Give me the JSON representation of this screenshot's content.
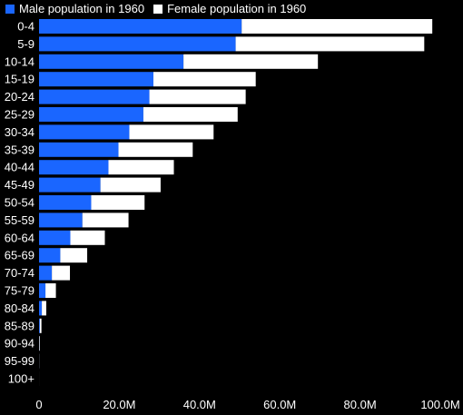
{
  "colors": {
    "male": "#1a66ff",
    "female": "#ffffff",
    "background": "#000000",
    "text": "#ffffff"
  },
  "chart_data": {
    "type": "bar",
    "orientation": "horizontal",
    "stacked": true,
    "title": "",
    "xlabel": "",
    "ylabel": "",
    "legend_position": "top-left",
    "grid": false,
    "xlim": [
      0,
      100000000
    ],
    "x_ticks": [
      {
        "value": 0,
        "label": "0"
      },
      {
        "value": 20000000,
        "label": "20.0M"
      },
      {
        "value": 40000000,
        "label": "40.0M"
      },
      {
        "value": 60000000,
        "label": "60.0M"
      },
      {
        "value": 80000000,
        "label": "80.0M"
      },
      {
        "value": 100000000,
        "label": "100.0M"
      }
    ],
    "categories": [
      "0-4",
      "5-9",
      "10-14",
      "15-19",
      "20-24",
      "25-29",
      "30-34",
      "35-39",
      "40-44",
      "45-49",
      "50-54",
      "55-59",
      "60-64",
      "65-69",
      "70-74",
      "75-79",
      "80-84",
      "85-89",
      "90-94",
      "95-99",
      "100+"
    ],
    "series": [
      {
        "name": "Male population in 1960",
        "values": [
          50500000,
          49000000,
          36000000,
          28500000,
          27500000,
          26000000,
          22500000,
          19800000,
          17300000,
          15300000,
          13000000,
          10800000,
          7800000,
          5300000,
          3200000,
          1600000,
          700000,
          200000,
          50000,
          10000,
          0
        ]
      },
      {
        "name": "Female population in 1960",
        "values": [
          47500000,
          47000000,
          33500000,
          25500000,
          24000000,
          23500000,
          21000000,
          18500000,
          16300000,
          15000000,
          13300000,
          11500000,
          8600000,
          6700000,
          4500000,
          2600000,
          1100000,
          400000,
          150000,
          30000,
          5000
        ]
      }
    ]
  }
}
